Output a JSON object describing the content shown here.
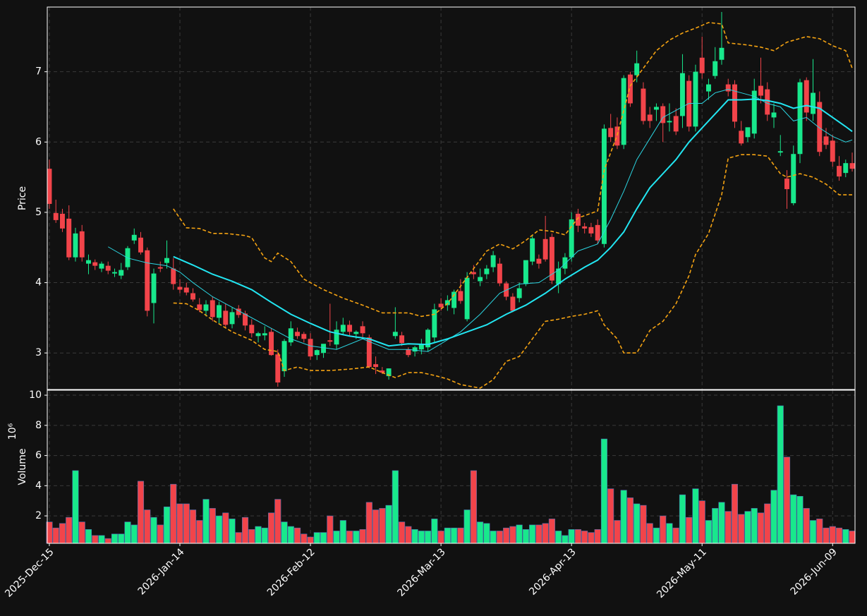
{
  "chart_data": [
    {
      "type": "candlestick",
      "ylabel": "Price",
      "xlim": [
        -0.32,
        123.43
      ],
      "ylim": [
        2.48,
        7.92
      ],
      "yticks": [
        3,
        4,
        5,
        6,
        7
      ],
      "grid": true,
      "up_color": "#18e88c",
      "down_color": "#f2444a",
      "open": [
        5.62,
        4.99,
        4.98,
        4.91,
        4.36,
        4.73,
        4.27,
        4.29,
        4.2,
        4.24,
        4.13,
        4.1,
        4.22,
        4.6,
        4.64,
        4.46,
        3.71,
        4.22,
        4.28,
        4.2,
        3.94,
        3.93,
        3.85,
        3.69,
        3.6,
        3.75,
        3.5,
        3.6,
        3.41,
        3.63,
        3.56,
        3.4,
        3.24,
        3.25,
        3.3,
        2.98,
        2.74,
        3.15,
        3.3,
        3.27,
        3.2,
        2.97,
        3.0,
        3.18,
        3.12,
        3.3,
        3.4,
        3.27,
        3.38,
        3.22,
        2.84,
        2.75,
        2.67,
        3.24,
        3.25,
        3.05,
        3.02,
        3.05,
        3.08,
        3.22,
        3.7,
        3.68,
        3.64,
        3.88,
        3.48,
        4.15,
        4.02,
        4.12,
        4.22,
        4.27,
        3.99,
        3.8,
        3.78,
        3.98,
        4.3,
        4.34,
        4.62,
        4.65,
        3.98,
        4.2,
        4.36,
        4.98,
        4.8,
        4.79,
        4.82,
        4.55,
        6.2,
        6.22,
        5.96,
        6.96,
        6.95,
        6.76,
        6.39,
        6.46,
        6.51,
        6.28,
        6.37,
        6.37,
        6.87,
        6.22,
        7.2,
        6.72,
        6.94,
        7.17,
        6.82,
        6.82,
        6.16,
        6.07,
        6.12,
        6.8,
        6.75,
        6.35,
        5.85,
        5.48,
        5.13,
        5.83,
        6.88,
        6.4,
        6.57,
        6.08,
        6.02,
        5.66,
        5.56,
        5.7
      ],
      "high": [
        5.75,
        5.18,
        5.05,
        5.1,
        4.78,
        4.82,
        4.4,
        4.33,
        4.3,
        4.3,
        4.2,
        4.28,
        4.52,
        4.77,
        4.72,
        4.5,
        4.2,
        4.3,
        4.6,
        4.35,
        4.05,
        4.0,
        3.92,
        3.78,
        3.75,
        3.8,
        3.73,
        3.7,
        3.65,
        3.68,
        3.6,
        3.48,
        3.3,
        3.38,
        3.35,
        3.05,
        3.2,
        3.45,
        3.36,
        3.3,
        3.28,
        3.05,
        3.12,
        3.7,
        3.45,
        3.5,
        3.46,
        3.32,
        3.45,
        3.26,
        2.95,
        2.8,
        2.78,
        3.65,
        3.3,
        3.08,
        3.1,
        3.2,
        3.35,
        3.7,
        3.78,
        3.82,
        3.9,
        4.05,
        4.15,
        4.25,
        4.2,
        4.25,
        4.45,
        4.35,
        4.02,
        3.85,
        4.0,
        4.3,
        4.68,
        4.4,
        4.95,
        4.7,
        4.3,
        4.42,
        5.0,
        5.05,
        4.85,
        4.85,
        4.9,
        6.25,
        6.4,
        6.35,
        6.95,
        7.0,
        7.3,
        6.85,
        6.5,
        6.55,
        6.55,
        6.55,
        6.48,
        7.25,
        6.95,
        7.1,
        7.5,
        6.9,
        7.35,
        7.85,
        6.9,
        6.88,
        6.3,
        6.2,
        6.9,
        7.2,
        6.85,
        6.55,
        6.1,
        5.6,
        5.95,
        6.9,
        6.92,
        7.18,
        6.72,
        6.2,
        6.1,
        5.8,
        5.75,
        5.85
      ],
      "low": [
        5.05,
        4.85,
        4.72,
        4.32,
        4.3,
        4.3,
        4.12,
        4.18,
        4.15,
        4.12,
        4.08,
        4.05,
        4.18,
        4.55,
        4.4,
        3.52,
        3.42,
        4.15,
        4.2,
        3.9,
        3.85,
        3.82,
        3.73,
        3.58,
        3.52,
        3.45,
        3.42,
        3.35,
        3.35,
        3.5,
        3.32,
        3.22,
        3.15,
        3.18,
        2.96,
        2.52,
        2.66,
        3.1,
        3.2,
        3.15,
        2.9,
        2.9,
        2.93,
        3.1,
        3.05,
        3.25,
        3.25,
        3.2,
        3.2,
        2.78,
        2.7,
        2.7,
        2.62,
        3.2,
        3.1,
        2.94,
        2.95,
        2.98,
        3.02,
        3.15,
        3.6,
        3.6,
        3.55,
        3.7,
        3.45,
        4.05,
        3.95,
        4.05,
        4.15,
        3.95,
        3.75,
        3.58,
        3.72,
        3.95,
        4.25,
        4.2,
        4.3,
        3.98,
        3.85,
        4.12,
        4.3,
        4.72,
        4.7,
        4.65,
        4.55,
        4.5,
        6.0,
        5.9,
        5.9,
        6.5,
        6.85,
        6.25,
        6.2,
        6.3,
        6.0,
        6.15,
        6.1,
        6.2,
        6.15,
        6.15,
        6.9,
        6.6,
        6.9,
        7.1,
        6.65,
        6.2,
        5.95,
        6.0,
        6.05,
        6.55,
        6.3,
        6.2,
        5.8,
        5.05,
        5.1,
        5.7,
        6.3,
        6.3,
        5.8,
        5.9,
        5.65,
        5.45,
        5.5,
        5.58
      ],
      "close": [
        5.12,
        4.89,
        4.77,
        4.36,
        4.7,
        4.36,
        4.32,
        4.24,
        4.27,
        4.17,
        4.15,
        4.18,
        4.49,
        4.68,
        4.43,
        3.6,
        4.13,
        4.2,
        4.35,
        3.98,
        3.9,
        3.86,
        3.76,
        3.61,
        3.69,
        3.51,
        3.68,
        3.4,
        3.58,
        3.54,
        3.39,
        3.28,
        3.28,
        3.28,
        2.97,
        2.58,
        3.17,
        3.35,
        3.24,
        3.2,
        2.95,
        3.04,
        3.13,
        3.16,
        3.33,
        3.4,
        3.3,
        3.3,
        3.28,
        2.8,
        2.8,
        2.72,
        2.78,
        3.3,
        3.14,
        2.97,
        3.08,
        3.12,
        3.33,
        3.62,
        3.65,
        3.75,
        3.87,
        3.74,
        4.07,
        4.12,
        4.08,
        4.2,
        4.39,
        3.99,
        3.8,
        3.6,
        3.92,
        4.32,
        4.63,
        4.27,
        4.33,
        4.03,
        4.2,
        4.36,
        4.9,
        4.81,
        4.77,
        4.7,
        4.6,
        6.19,
        6.07,
        5.95,
        6.91,
        6.55,
        7.12,
        6.3,
        6.3,
        6.5,
        6.27,
        6.3,
        6.15,
        6.98,
        6.22,
        7.0,
        6.98,
        6.82,
        7.15,
        7.34,
        6.72,
        6.29,
        5.98,
        6.21,
        6.73,
        6.66,
        6.39,
        6.42,
        5.87,
        5.33,
        5.83,
        6.85,
        6.42,
        6.7,
        5.86,
        5.96,
        5.72,
        5.51,
        5.7,
        5.62
      ],
      "series": [
        {
          "color": "#2bd4e0",
          "width": 1,
          "dash": false,
          "x": [
            9,
            12,
            15,
            18,
            20,
            22,
            25,
            28,
            31,
            34,
            37,
            40,
            44,
            48,
            52,
            55,
            58,
            60,
            63,
            66,
            69,
            72,
            75,
            78,
            81,
            84,
            86,
            88,
            90,
            92,
            94,
            96,
            98,
            100,
            102,
            104,
            106,
            108,
            110,
            112,
            114,
            116,
            118,
            120,
            122,
            123
          ],
          "values": [
            4.51,
            4.35,
            4.28,
            4.24,
            4.15,
            4.0,
            3.8,
            3.65,
            3.5,
            3.35,
            3.2,
            3.1,
            3.05,
            3.2,
            3.05,
            3.05,
            3.02,
            3.13,
            3.3,
            3.55,
            3.85,
            3.98,
            4.0,
            4.18,
            4.45,
            4.55,
            4.9,
            5.3,
            5.75,
            6.05,
            6.35,
            6.45,
            6.55,
            6.55,
            6.7,
            6.75,
            6.7,
            6.65,
            6.55,
            6.5,
            6.3,
            6.35,
            6.2,
            6.08,
            6.0,
            6.03
          ]
        },
        {
          "color": "#22e6f2",
          "width": 2,
          "dash": false,
          "x": [
            19,
            22,
            25,
            28,
            31,
            34,
            37,
            40,
            43,
            46,
            49,
            52,
            55,
            58,
            61,
            64,
            67,
            70,
            73,
            76,
            79,
            82,
            84,
            86,
            88,
            90,
            92,
            94,
            96,
            98,
            100,
            102,
            104,
            106,
            108,
            110,
            112,
            114,
            116,
            118,
            120,
            122,
            123
          ],
          "values": [
            4.37,
            4.25,
            4.12,
            4.02,
            3.9,
            3.72,
            3.55,
            3.42,
            3.3,
            3.24,
            3.2,
            3.1,
            3.13,
            3.12,
            3.2,
            3.3,
            3.4,
            3.55,
            3.68,
            3.85,
            4.05,
            4.22,
            4.32,
            4.5,
            4.72,
            5.05,
            5.35,
            5.55,
            5.75,
            6.0,
            6.2,
            6.4,
            6.6,
            6.6,
            6.61,
            6.59,
            6.55,
            6.48,
            6.52,
            6.48,
            6.35,
            6.22,
            6.15
          ]
        },
        {
          "color": "#f5a312",
          "width": 1.6,
          "dash": true,
          "x": [
            19,
            21,
            23,
            25,
            27,
            30,
            31,
            33,
            34,
            35,
            37,
            39,
            42,
            45,
            48,
            51,
            55,
            57,
            59,
            61,
            63,
            65,
            67,
            69,
            71,
            73,
            75,
            77,
            79,
            81,
            84,
            85,
            87,
            89,
            91,
            93,
            95,
            97,
            99,
            101,
            103,
            104,
            107,
            109,
            111,
            113,
            116,
            118,
            120,
            122,
            123
          ],
          "values": [
            5.05,
            4.78,
            4.77,
            4.7,
            4.7,
            4.67,
            4.64,
            4.35,
            4.3,
            4.42,
            4.3,
            4.05,
            3.9,
            3.78,
            3.68,
            3.57,
            3.57,
            3.52,
            3.55,
            3.7,
            3.95,
            4.2,
            4.45,
            4.55,
            4.48,
            4.6,
            4.75,
            4.73,
            4.68,
            4.92,
            5.02,
            5.6,
            6.1,
            6.8,
            7.05,
            7.3,
            7.45,
            7.55,
            7.62,
            7.7,
            7.68,
            7.41,
            7.38,
            7.35,
            7.3,
            7.42,
            7.5,
            7.47,
            7.37,
            7.3,
            7.05
          ]
        },
        {
          "color": "#f5a312",
          "width": 1.6,
          "dash": true,
          "x": [
            19,
            21,
            23,
            25,
            28,
            31,
            33,
            35,
            36,
            38,
            40,
            43,
            46,
            49,
            51,
            53,
            55,
            57,
            59,
            61,
            63,
            66,
            68,
            70,
            72,
            74,
            76,
            78,
            80,
            82,
            84,
            85,
            87,
            88,
            90,
            92,
            94,
            96,
            98,
            99,
            101,
            103,
            104,
            106,
            108,
            110,
            112,
            113,
            115,
            117,
            119,
            121,
            123
          ],
          "values": [
            3.71,
            3.7,
            3.6,
            3.47,
            3.3,
            3.18,
            3.05,
            3.02,
            2.75,
            2.8,
            2.75,
            2.75,
            2.77,
            2.8,
            2.72,
            2.65,
            2.72,
            2.72,
            2.68,
            2.63,
            2.55,
            2.5,
            2.62,
            2.88,
            2.95,
            3.2,
            3.45,
            3.48,
            3.52,
            3.55,
            3.6,
            3.4,
            3.2,
            3.0,
            3.0,
            3.32,
            3.45,
            3.7,
            4.1,
            4.4,
            4.7,
            5.25,
            5.77,
            5.82,
            5.82,
            5.8,
            5.55,
            5.5,
            5.55,
            5.5,
            5.4,
            5.25,
            5.25
          ]
        }
      ]
    },
    {
      "type": "bar",
      "ylabel": "Volume",
      "scale_label": "10⁶",
      "xlim": [
        -0.32,
        123.43
      ],
      "ylim": [
        0.18,
        10.33
      ],
      "yticks": [
        2,
        4,
        6,
        8,
        10
      ],
      "grid": true,
      "edge_color": "#4a6fb0",
      "xticks": [
        {
          "value": 0,
          "label": "2025-Dec-15"
        },
        {
          "value": 20,
          "label": "2026-Jan-14"
        },
        {
          "value": 40,
          "label": "2026-Feb-12"
        },
        {
          "value": 60,
          "label": "2026-Mar-13"
        },
        {
          "value": 80,
          "label": "2026-Apr-13"
        },
        {
          "value": 100,
          "label": "2026-May-11"
        },
        {
          "value": 120,
          "label": "2026-Jun-09"
        }
      ],
      "values": [
        1.6,
        1.2,
        1.5,
        1.9,
        5.0,
        1.6,
        1.1,
        0.7,
        0.7,
        0.5,
        0.8,
        0.8,
        1.6,
        1.4,
        4.3,
        2.4,
        1.9,
        1.4,
        2.6,
        4.1,
        2.8,
        2.8,
        2.4,
        1.7,
        3.1,
        2.5,
        2.0,
        2.2,
        1.8,
        0.9,
        1.9,
        1.1,
        1.3,
        1.2,
        2.2,
        3.1,
        1.6,
        1.3,
        1.2,
        0.8,
        0.6,
        0.9,
        0.9,
        2.0,
        1.0,
        1.7,
        1.0,
        1.0,
        1.1,
        2.9,
        2.4,
        2.5,
        2.7,
        5.0,
        1.6,
        1.3,
        1.1,
        1.0,
        1.0,
        1.8,
        1.0,
        1.2,
        1.2,
        1.2,
        2.4,
        5.0,
        1.6,
        1.5,
        1.0,
        1.0,
        1.2,
        1.3,
        1.4,
        1.1,
        1.4,
        1.4,
        1.5,
        1.8,
        1.0,
        0.7,
        1.1,
        1.1,
        1.0,
        0.9,
        1.1,
        7.1,
        3.8,
        1.7,
        3.7,
        3.2,
        2.8,
        2.7,
        1.5,
        1.2,
        2.0,
        1.5,
        1.2,
        3.4,
        1.9,
        3.8,
        3.0,
        1.7,
        2.5,
        2.9,
        2.3,
        4.1,
        2.1,
        2.3,
        2.5,
        2.2,
        2.8,
        3.7,
        9.3,
        5.9,
        3.4,
        3.3,
        2.5,
        1.7,
        1.8,
        1.2,
        1.3,
        1.2,
        1.1,
        1.0
      ]
    }
  ]
}
